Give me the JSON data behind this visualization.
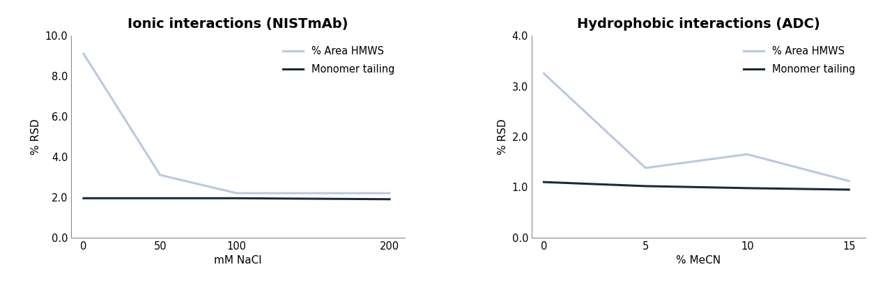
{
  "left": {
    "title": "Ionic interactions (NISTmAb)",
    "xlabel": "mM NaCl",
    "ylabel": "% RSD",
    "x": [
      0,
      50,
      100,
      200
    ],
    "hmws": [
      9.1,
      3.1,
      2.2,
      2.2
    ],
    "monomer": [
      1.95,
      1.95,
      1.95,
      1.9
    ],
    "ylim": [
      0.0,
      10.0
    ],
    "yticks": [
      0.0,
      2.0,
      4.0,
      6.0,
      8.0,
      10.0
    ],
    "xticks": [
      0,
      50,
      100,
      200
    ],
    "xlim": [
      -8,
      210
    ]
  },
  "right": {
    "title": "Hydrophobic interactions (ADC)",
    "xlabel": "% MeCN",
    "ylabel": "% RSD",
    "x": [
      0,
      5,
      10,
      15
    ],
    "hmws": [
      3.25,
      1.38,
      1.65,
      1.12
    ],
    "monomer": [
      1.1,
      1.02,
      0.98,
      0.95
    ],
    "ylim": [
      0.0,
      4.0
    ],
    "yticks": [
      0.0,
      1.0,
      2.0,
      3.0,
      4.0
    ],
    "xticks": [
      0,
      5,
      10,
      15
    ],
    "xlim": [
      -0.6,
      15.8
    ]
  },
  "hmws_color": "#b8c9e0",
  "monomer_color": "#1a2a3a",
  "hmws_label": "% Area HMWS",
  "monomer_label": "Monomer tailing",
  "line_width": 2.2,
  "title_fontsize": 14,
  "label_fontsize": 11,
  "tick_fontsize": 10.5,
  "legend_fontsize": 10.5,
  "background_color": "#ffffff",
  "spine_color": "#888888"
}
